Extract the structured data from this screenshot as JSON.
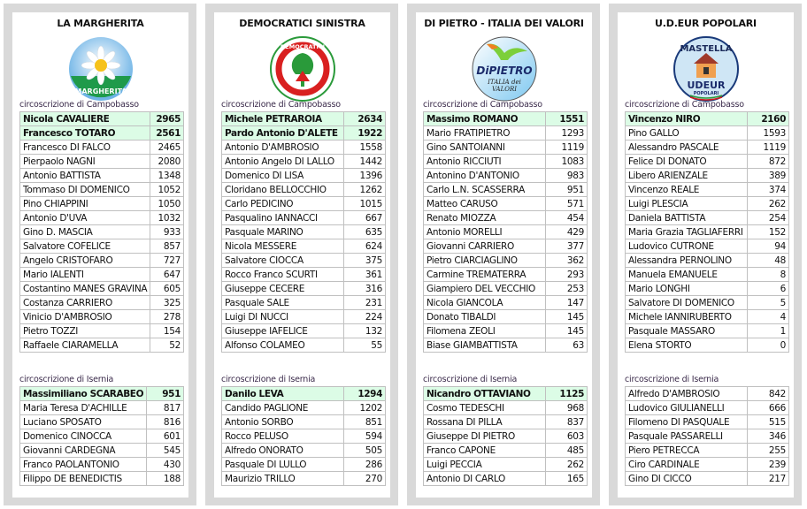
{
  "panels": [
    {
      "title": "LA MARGHERITA",
      "logo": {
        "name": "margherita-logo",
        "text": [
          "DEMOCRAZIA È LIBERTÀ",
          "LA MARGHERITA"
        ]
      },
      "campobasso_label": "circoscrizione di Campobasso",
      "campobasso": [
        {
          "name": "Nicola CAVALIERE",
          "votes": "2965",
          "elected": true
        },
        {
          "name": "Francesco TOTARO",
          "votes": "2561",
          "elected": true
        },
        {
          "name": "Francesco DI FALCO",
          "votes": "2465"
        },
        {
          "name": "Pierpaolo NAGNI",
          "votes": "2080"
        },
        {
          "name": "Antonio BATTISTA",
          "votes": "1348"
        },
        {
          "name": "Tommaso DI DOMENICO",
          "votes": "1052"
        },
        {
          "name": "Pino CHIAPPINI",
          "votes": "1050"
        },
        {
          "name": "Antonio D'UVA",
          "votes": "1032"
        },
        {
          "name": "Gino D. MASCIA",
          "votes": "933"
        },
        {
          "name": "Salvatore COFELICE",
          "votes": "857"
        },
        {
          "name": "Angelo CRISTOFARO",
          "votes": "727"
        },
        {
          "name": "Mario IALENTI",
          "votes": "647"
        },
        {
          "name": "Costantino MANES GRAVINA",
          "votes": "605"
        },
        {
          "name": "Costanza CARRIERO",
          "votes": "325"
        },
        {
          "name": "Vinicio D'AMBROSIO",
          "votes": "278"
        },
        {
          "name": "Pietro TOZZI",
          "votes": "154"
        },
        {
          "name": "Raffaele CIARAMELLA",
          "votes": "52"
        }
      ],
      "isernia_label": "circoscrizione di Isernia",
      "isernia": [
        {
          "name": "Massimiliano SCARABEO",
          "votes": "951",
          "elected": true
        },
        {
          "name": "Maria Teresa D'ACHILLE",
          "votes": "817"
        },
        {
          "name": "Luciano SPOSATO",
          "votes": "816"
        },
        {
          "name": "Domenico CINOCCA",
          "votes": "601"
        },
        {
          "name": "Giovanni CARDEGNA",
          "votes": "545"
        },
        {
          "name": "Franco PAOLANTONIO",
          "votes": "430"
        },
        {
          "name": "Filippo DE BENEDICTIS",
          "votes": "188"
        }
      ]
    },
    {
      "title": "DEMOCRATICI SINISTRA",
      "logo": {
        "name": "democratici-sinistra-logo",
        "text": [
          "DEMOCRATICI DI SINISTRA"
        ]
      },
      "campobasso_label": "circoscrizione di Campobasso",
      "campobasso": [
        {
          "name": "Michele PETRAROIA",
          "votes": "2634",
          "elected": true
        },
        {
          "name": "Pardo Antonio D'ALETE",
          "votes": "1922",
          "elected": true
        },
        {
          "name": "Antonio D'AMBROSIO",
          "votes": "1558"
        },
        {
          "name": "Antonio Angelo DI LALLO",
          "votes": "1442"
        },
        {
          "name": "Domenico DI LISA",
          "votes": "1396"
        },
        {
          "name": "Cloridano BELLOCCHIO",
          "votes": "1262"
        },
        {
          "name": "Carlo PEDICINO",
          "votes": "1015"
        },
        {
          "name": "Pasqualino IANNACCI",
          "votes": "667"
        },
        {
          "name": "Pasquale MARINO",
          "votes": "635"
        },
        {
          "name": "Nicola MESSERE",
          "votes": "624"
        },
        {
          "name": "Salvatore CIOCCA",
          "votes": "375"
        },
        {
          "name": "Rocco Franco SCURTI",
          "votes": "361"
        },
        {
          "name": "Giuseppe CECERE",
          "votes": "316"
        },
        {
          "name": "Pasquale SALE",
          "votes": "231"
        },
        {
          "name": "Luigi DI NUCCI",
          "votes": "224"
        },
        {
          "name": "Giuseppe IAFELICE",
          "votes": "132"
        },
        {
          "name": "Alfonso COLAMEO",
          "votes": "55"
        }
      ],
      "isernia_label": "circoscrizione di Isernia",
      "isernia": [
        {
          "name": "Danilo LEVA",
          "votes": "1294",
          "elected": true
        },
        {
          "name": "Candido PAGLIONE",
          "votes": "1202"
        },
        {
          "name": "Antonio SORBO",
          "votes": "851"
        },
        {
          "name": "Rocco PELUSO",
          "votes": "594"
        },
        {
          "name": "Alfredo ONORATO",
          "votes": "505"
        },
        {
          "name": "Pasquale DI LULLO",
          "votes": "286"
        },
        {
          "name": "Maurizio TRILLO",
          "votes": "270"
        }
      ]
    },
    {
      "title": "DI PIETRO - ITALIA DEI  VALORI",
      "logo": {
        "name": "di-pietro-logo",
        "text": [
          "DiPIETRO",
          "ITALIA dei VALORI"
        ]
      },
      "campobasso_label": "circoscrizione di Campobasso",
      "campobasso": [
        {
          "name": "Massimo ROMANO",
          "votes": "1551",
          "elected": true
        },
        {
          "name": "Mario FRATIPIETRO",
          "votes": "1293"
        },
        {
          "name": "Gino SANTOIANNI",
          "votes": "1119"
        },
        {
          "name": "Antonio RICCIUTI",
          "votes": "1083"
        },
        {
          "name": "Antonino D'ANTONIO",
          "votes": "983"
        },
        {
          "name": "Carlo L.N. SCASSERRA",
          "votes": "951"
        },
        {
          "name": "Matteo CARUSO",
          "votes": "571"
        },
        {
          "name": "Renato MIOZZA",
          "votes": "454"
        },
        {
          "name": "Antonio MORELLI",
          "votes": "429"
        },
        {
          "name": "Giovanni CARRIERO",
          "votes": "377"
        },
        {
          "name": "Pietro CIARCIAGLINO",
          "votes": "362"
        },
        {
          "name": "Carmine TREMATERRA",
          "votes": "293"
        },
        {
          "name": "Giampiero DEL VECCHIO",
          "votes": "253"
        },
        {
          "name": "Nicola GIANCOLA",
          "votes": "147"
        },
        {
          "name": "Donato TIBALDI",
          "votes": "145"
        },
        {
          "name": "Filomena ZEOLI",
          "votes": "145"
        },
        {
          "name": "Biase GIAMBATTISTA",
          "votes": "63"
        }
      ],
      "isernia_label": "circoscrizione di Isernia",
      "isernia": [
        {
          "name": "Nicandro OTTAVIANO",
          "votes": "1125",
          "elected": true
        },
        {
          "name": "Cosmo TEDESCHI",
          "votes": "968"
        },
        {
          "name": "Rossana DI PILLA",
          "votes": "837"
        },
        {
          "name": "Giuseppe DI PIETRO",
          "votes": "603"
        },
        {
          "name": "Franco CAPONE",
          "votes": "485"
        },
        {
          "name": "Luigi PECCIA",
          "votes": "262"
        },
        {
          "name": "Antonio DI CARLO",
          "votes": "165"
        }
      ]
    },
    {
      "title": "U.D.EUR POPOLARI",
      "logo": {
        "name": "udeur-logo",
        "text": [
          "MASTELLA",
          "UDEUR",
          "POPOLARI"
        ]
      },
      "campobasso_label": "circoscrizione di Campobasso",
      "campobasso": [
        {
          "name": "Vincenzo NIRO",
          "votes": "2160",
          "elected": true
        },
        {
          "name": "Pino GALLO",
          "votes": "1593"
        },
        {
          "name": "Alessandro PASCALE",
          "votes": "1119"
        },
        {
          "name": "Felice DI DONATO",
          "votes": "872"
        },
        {
          "name": "Libero ARIENZALE",
          "votes": "389"
        },
        {
          "name": "Vincenzo REALE",
          "votes": "374"
        },
        {
          "name": "Luigi PLESCIA",
          "votes": "262"
        },
        {
          "name": "Daniela BATTISTA",
          "votes": "254"
        },
        {
          "name": "Maria Grazia TAGLIAFERRI",
          "votes": "152"
        },
        {
          "name": "Ludovico CUTRONE",
          "votes": "94"
        },
        {
          "name": "Alessandra PERNOLINO",
          "votes": "48"
        },
        {
          "name": "Manuela EMANUELE",
          "votes": "8"
        },
        {
          "name": "Mario LONGHI",
          "votes": "6"
        },
        {
          "name": "Salvatore DI DOMENICO",
          "votes": "5"
        },
        {
          "name": "Michele IANNIRUBERTO",
          "votes": "4"
        },
        {
          "name": "Pasquale MASSARO",
          "votes": "1"
        },
        {
          "name": "Elena STORTO",
          "votes": "0"
        }
      ],
      "isernia_label": "circoscrizione di Isernia",
      "isernia": [
        {
          "name": "Alfredo D'AMBROSIO",
          "votes": "842"
        },
        {
          "name": "Ludovico GIULIANELLI",
          "votes": "666"
        },
        {
          "name": "Filomeno DI PASQUALE",
          "votes": "515"
        },
        {
          "name": "Pasquale PASSARELLI",
          "votes": "346"
        },
        {
          "name": "Piero PETRECCA",
          "votes": "255"
        },
        {
          "name": "Ciro CARDINALE",
          "votes": "239"
        },
        {
          "name": "Gino DI CICCO",
          "votes": "217"
        }
      ]
    }
  ],
  "colors": {
    "elected_row": "#dcfce6",
    "panel_frame": "#d9d9d9",
    "grid": "#c0c0c0"
  }
}
